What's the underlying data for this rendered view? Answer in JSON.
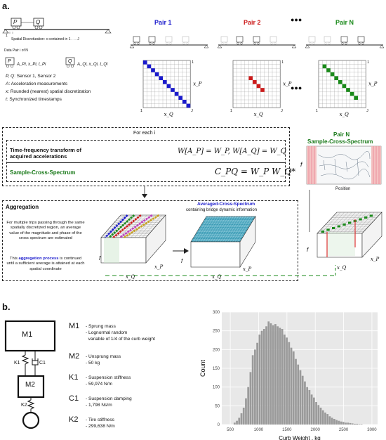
{
  "panel_a": {
    "label": "a.",
    "bridge": {
      "p_label": "P",
      "q_label": "Q",
      "discretization": "Spatial Discretization: x contained in 1 . . . J",
      "tick_1": "1",
      "tick_J": "J"
    },
    "data_pair": {
      "title": "Data Pair i of N",
      "p": "P",
      "q": "Q",
      "p_vars": "A_Pi, x_Pi, t_Pi",
      "q_vars": "A_Qi, x_Qi, t_Qi"
    },
    "legend": [
      {
        "key": "P, Q",
        "text": ": Sensor 1, Sensor 2"
      },
      {
        "key": "A",
        "text": ": Acceleration measurements"
      },
      {
        "key": "x",
        "text": ": Rounded (nearest) spatial discretization"
      },
      {
        "key": "t",
        "text": ": Synchronized timestamps"
      }
    ],
    "pairs": [
      {
        "title": "Pair 1",
        "color": "#1a1acc"
      },
      {
        "title": "Pair 2",
        "color": "#cc1a1a"
      },
      {
        "title": "Pair N",
        "color": "#1a8a1a"
      }
    ],
    "ellipsis": "●●●",
    "matrix_axes": {
      "x": "x_Q",
      "y": "x_P",
      "one": "1",
      "J": "J"
    },
    "for_each": {
      "title": "For each i",
      "tf_label": "Time-frequency transform of acquired accelerations",
      "tf_formula": "W[A_P] = W_P, W[A_Q] = W_Q",
      "scs_label": "Sample-Cross-Spectrum",
      "scs_formula": "C_PQ = W_P W_Q*"
    },
    "pair_n_box": {
      "title_line1": "Pair N",
      "title_line2": "Sample-Cross-Spectrum",
      "f": "f",
      "position": "Position"
    },
    "aggregation": {
      "title": "Aggregation",
      "text1": "For multiple trips passing through the same spatially discretized region, an average value of the magnitude and phase of the cross spectrum are estimated",
      "text2_pre": "This ",
      "text2_em": "aggregation process",
      "text2_post": " is continued until a sufficient average is attained at each spatial coordinate",
      "acs_title": "Averaged-Cross-Spectrum",
      "acs_sub": "containing bridge dynamic information",
      "f": "f",
      "xp": "x_P",
      "xq": "x_Q"
    }
  },
  "panel_b": {
    "label": "b.",
    "model": {
      "m1": "M1",
      "m2": "M2",
      "k1": "K1",
      "c1": "C1",
      "k2": "K2"
    },
    "params": [
      {
        "sym": "M1",
        "lines": [
          "- Sprung mass",
          "- Lognormal random",
          "  variable of 1/4 of the curb weight"
        ]
      },
      {
        "sym": "M2",
        "lines": [
          "- Unsprung mass",
          "- 50 kg"
        ]
      },
      {
        "sym": "K1",
        "lines": [
          "- Suspension stiffness",
          "- 59,974 N/m"
        ]
      },
      {
        "sym": "C1",
        "lines": [
          "- Suspension damping",
          "- 1,798 Ns/m"
        ]
      },
      {
        "sym": "K2",
        "lines": [
          "- Tire stiffness",
          "- 299,638 N/m"
        ]
      }
    ]
  },
  "chart_data": {
    "type": "bar",
    "xlabel": "Curb Weight , kg",
    "ylabel": "Count",
    "xlim": [
      350,
      3100
    ],
    "ylim": [
      0,
      300
    ],
    "xticks": [
      500,
      1000,
      1500,
      2000,
      2500,
      3000
    ],
    "yticks": [
      0,
      50,
      100,
      150,
      200,
      250,
      300
    ],
    "bin_width": 40,
    "bin_starts": [
      560,
      600,
      640,
      680,
      720,
      760,
      800,
      840,
      880,
      920,
      960,
      1000,
      1040,
      1080,
      1120,
      1160,
      1200,
      1240,
      1280,
      1320,
      1360,
      1400,
      1440,
      1480,
      1520,
      1560,
      1600,
      1640,
      1680,
      1720,
      1760,
      1800,
      1840,
      1880,
      1920,
      1960,
      2000,
      2040,
      2080,
      2120,
      2160,
      2200,
      2240,
      2280,
      2320,
      2360,
      2400,
      2440,
      2480,
      2520,
      2560,
      2600,
      2640,
      2680,
      2720,
      2760,
      2800
    ],
    "values": [
      5,
      10,
      18,
      30,
      45,
      70,
      100,
      140,
      185,
      200,
      218,
      240,
      250,
      255,
      262,
      275,
      270,
      265,
      268,
      262,
      258,
      255,
      240,
      232,
      220,
      205,
      195,
      175,
      160,
      145,
      130,
      115,
      100,
      92,
      80,
      72,
      60,
      52,
      45,
      38,
      32,
      28,
      22,
      18,
      15,
      12,
      10,
      8,
      7,
      5,
      5,
      4,
      3,
      2,
      2,
      1,
      1
    ],
    "bar_color": "#9a9a9a",
    "bg_color": "#e8e8e8"
  }
}
